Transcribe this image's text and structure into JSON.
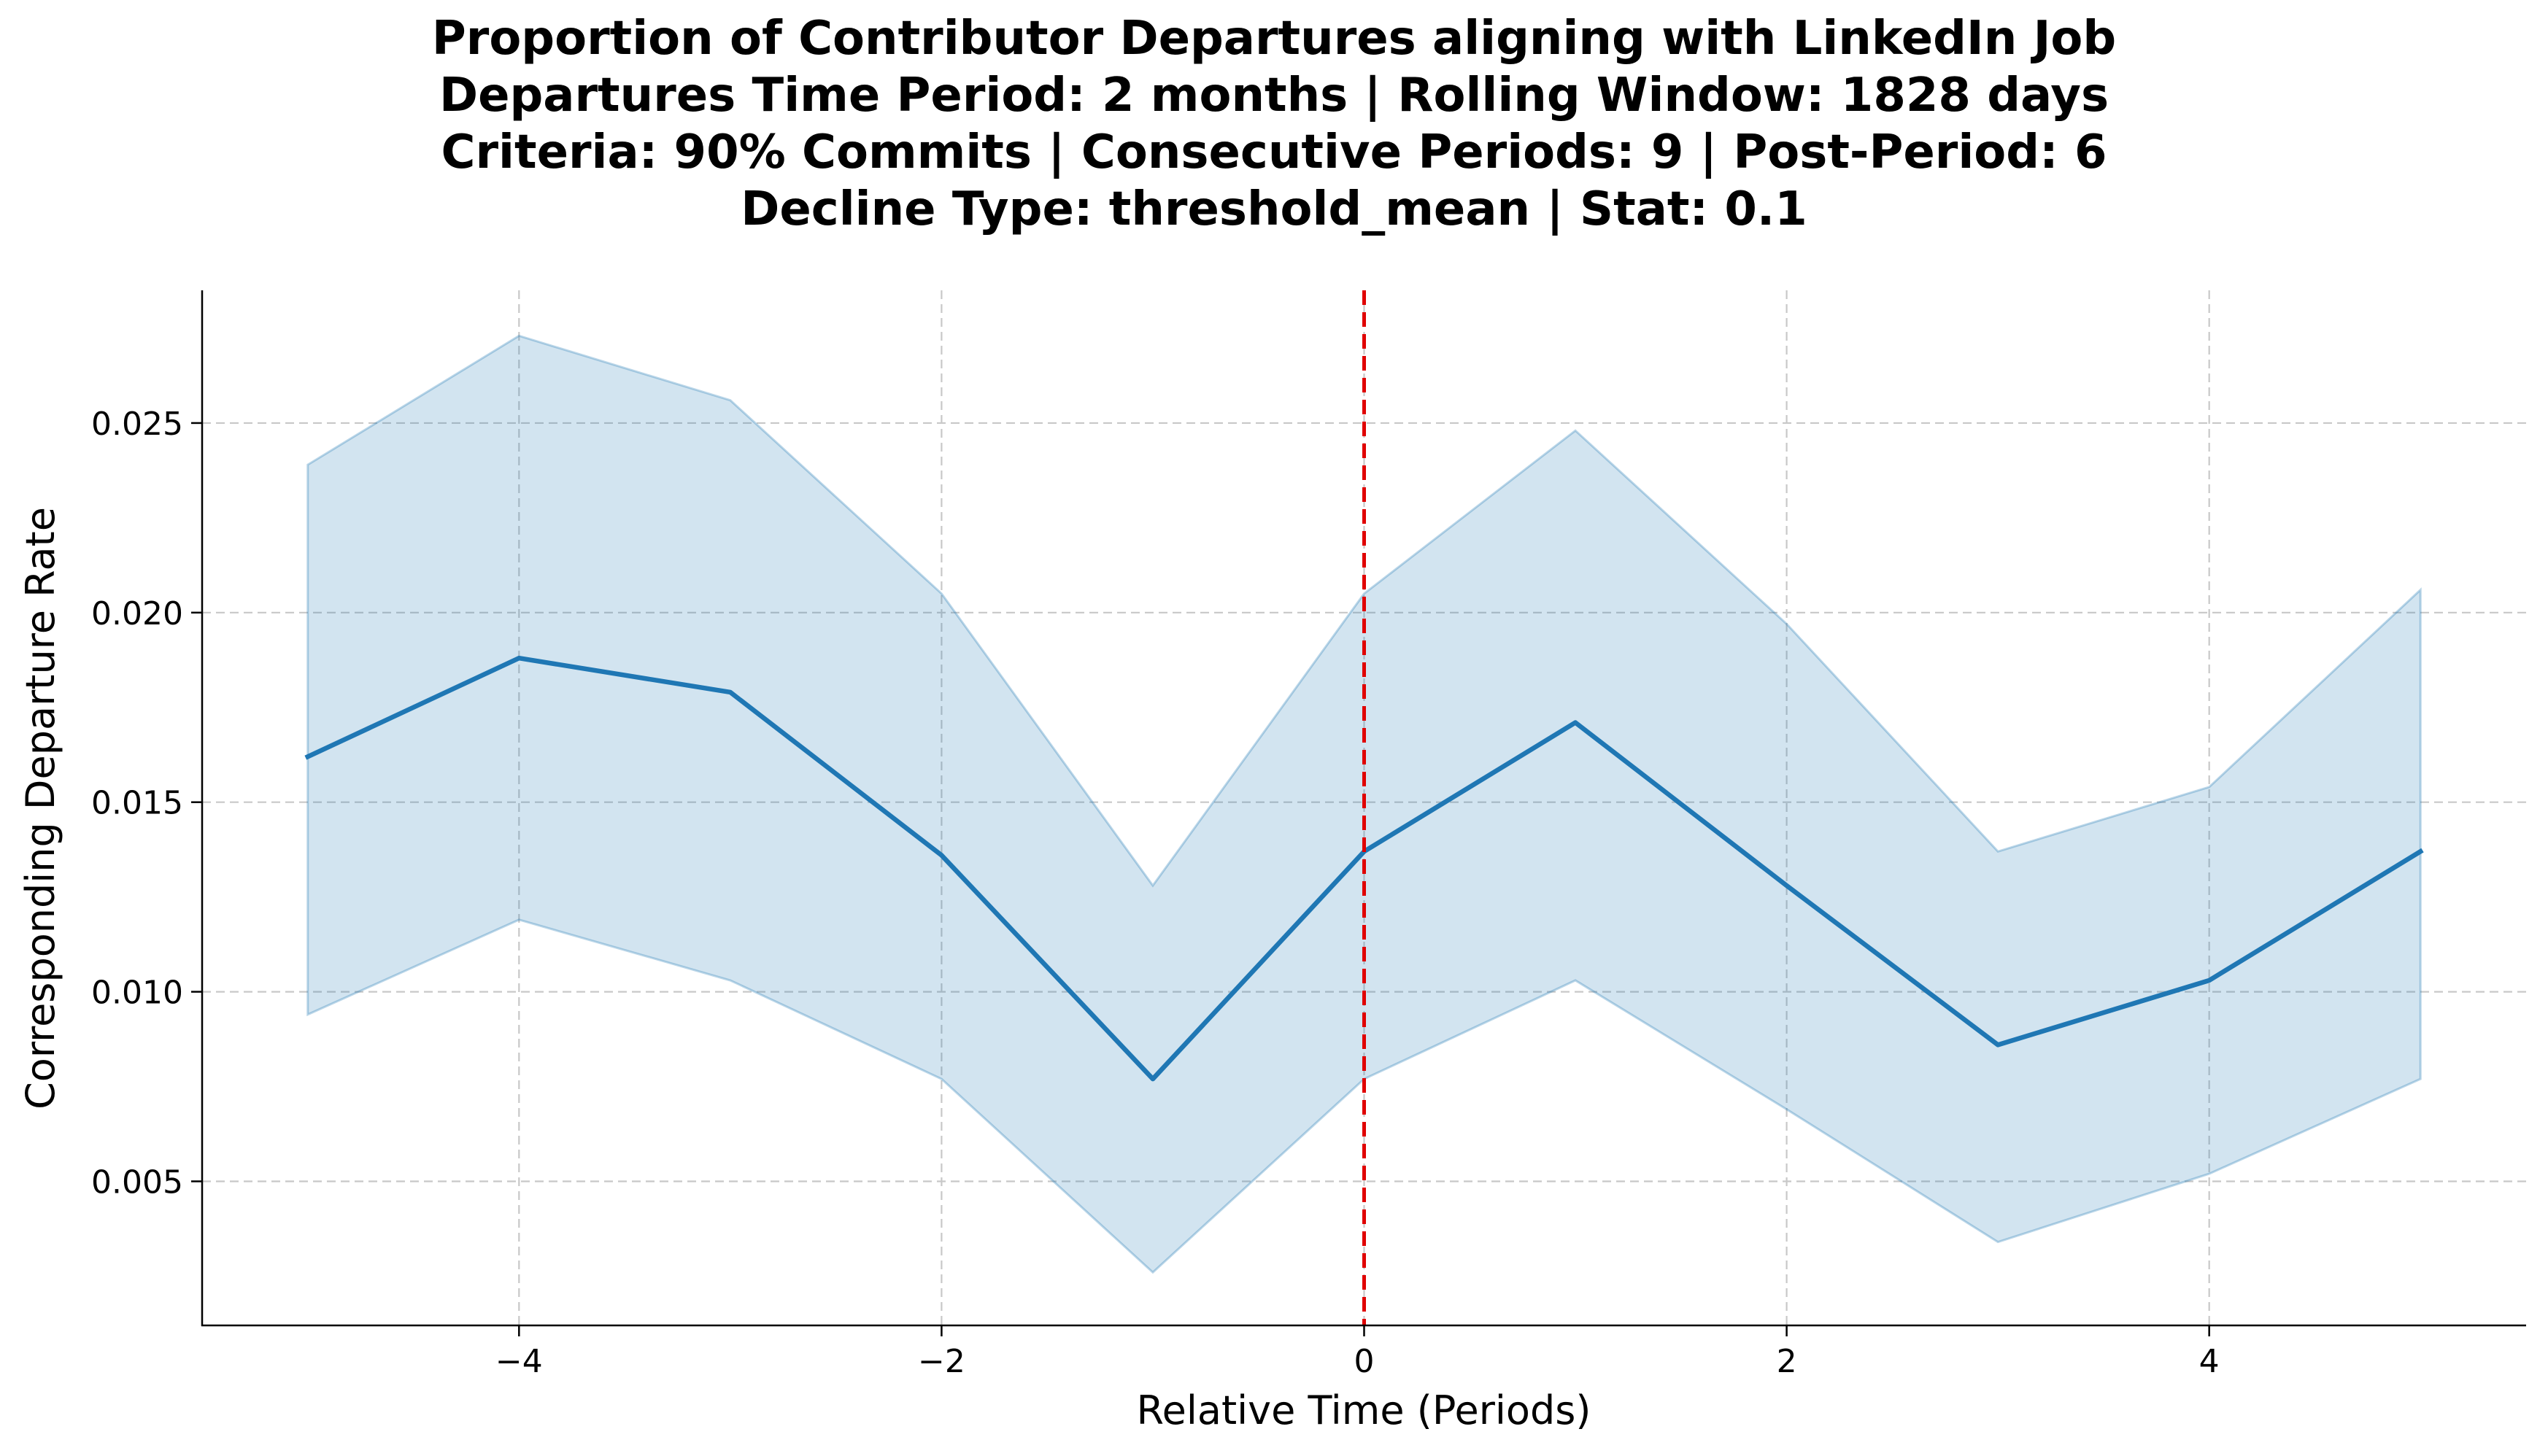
{
  "chart_data": {
    "type": "line",
    "title_lines": [
      "Proportion of Contributor Departures aligning with LinkedIn Job",
      "Departures Time Period: 2 months | Rolling Window: 1828 days",
      "Criteria: 90% Commits | Consecutive Periods: 9 | Post-Period: 6",
      "Decline Type: threshold_mean | Stat: 0.1"
    ],
    "xlabel": "Relative Time (Periods)",
    "ylabel": "Corresponding Departure Rate",
    "xlim": [
      -5.5,
      5.5
    ],
    "ylim": [
      0.0012,
      0.0285
    ],
    "xticks": [
      -4,
      -2,
      0,
      2,
      4
    ],
    "xtick_labels": [
      "−4",
      "−2",
      "0",
      "2",
      "4"
    ],
    "yticks": [
      0.005,
      0.01,
      0.015,
      0.02,
      0.025
    ],
    "ytick_labels": [
      "0.005",
      "0.010",
      "0.015",
      "0.020",
      "0.025"
    ],
    "grid": true,
    "grid_style": "dashed",
    "series": [
      {
        "x": [
          -5,
          -4,
          -3,
          -2,
          -1,
          0,
          1,
          2,
          3,
          4,
          5
        ],
        "values": [
          0.0162,
          0.0188,
          0.0179,
          0.0136,
          0.0077,
          0.0137,
          0.0171,
          0.0128,
          0.0086,
          0.0103,
          0.0137
        ],
        "ci_lower": [
          0.0094,
          0.0119,
          0.0103,
          0.0077,
          0.0026,
          0.0077,
          0.0103,
          0.0069,
          0.0034,
          0.0052,
          0.0077
        ],
        "ci_upper": [
          0.0239,
          0.0273,
          0.0256,
          0.0205,
          0.0128,
          0.0205,
          0.0248,
          0.0197,
          0.0137,
          0.0154,
          0.0206
        ],
        "color": "#1f77b4"
      }
    ],
    "vline": {
      "x": 0,
      "color": "#e00000",
      "style": "dashed"
    }
  }
}
